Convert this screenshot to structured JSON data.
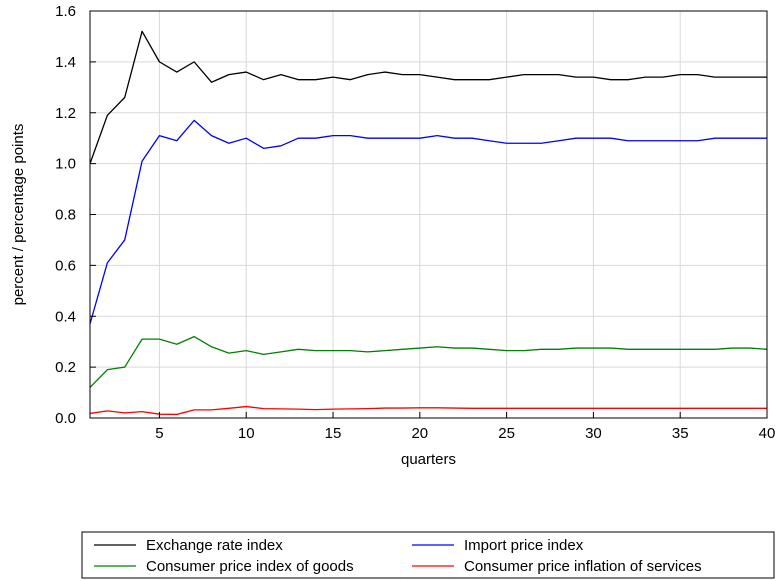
{
  "chart_data": {
    "type": "line",
    "xlabel": "quarters",
    "ylabel": "percent / percentage points",
    "xlim": [
      1,
      40
    ],
    "ylim": [
      0,
      1.6
    ],
    "x_ticks": [
      5,
      10,
      15,
      20,
      25,
      30,
      35,
      40
    ],
    "y_ticks": [
      0.0,
      0.2,
      0.4,
      0.6,
      0.8,
      1.0,
      1.2,
      1.4,
      1.6
    ],
    "x_tick_labels": [
      "5",
      "10",
      "15",
      "20",
      "25",
      "30",
      "35",
      "40"
    ],
    "y_tick_labels": [
      "0.0",
      "0.2",
      "0.4",
      "0.6",
      "0.8",
      "1.0",
      "1.2",
      "1.4",
      "1.6"
    ],
    "grid": true,
    "legend_position": "bottom",
    "x": [
      1,
      2,
      3,
      4,
      5,
      6,
      7,
      8,
      9,
      10,
      11,
      12,
      13,
      14,
      15,
      16,
      17,
      18,
      19,
      20,
      21,
      22,
      23,
      24,
      25,
      26,
      27,
      28,
      29,
      30,
      31,
      32,
      33,
      34,
      35,
      36,
      37,
      38,
      39,
      40
    ],
    "series": [
      {
        "name": "Exchange rate index",
        "color": "#000000",
        "values": [
          1.0,
          1.19,
          1.26,
          1.52,
          1.4,
          1.36,
          1.4,
          1.32,
          1.35,
          1.36,
          1.33,
          1.35,
          1.33,
          1.33,
          1.34,
          1.33,
          1.35,
          1.36,
          1.35,
          1.35,
          1.34,
          1.33,
          1.33,
          1.33,
          1.34,
          1.35,
          1.35,
          1.35,
          1.34,
          1.34,
          1.33,
          1.33,
          1.34,
          1.34,
          1.35,
          1.35,
          1.34,
          1.34,
          1.34,
          1.34
        ]
      },
      {
        "name": "Import price index",
        "color": "#0000ff",
        "values": [
          0.37,
          0.61,
          0.7,
          1.01,
          1.11,
          1.09,
          1.17,
          1.11,
          1.08,
          1.1,
          1.06,
          1.07,
          1.1,
          1.1,
          1.11,
          1.11,
          1.1,
          1.1,
          1.1,
          1.1,
          1.11,
          1.1,
          1.1,
          1.09,
          1.08,
          1.08,
          1.08,
          1.09,
          1.1,
          1.1,
          1.1,
          1.09,
          1.09,
          1.09,
          1.09,
          1.09,
          1.1,
          1.1,
          1.1,
          1.1
        ]
      },
      {
        "name": "Consumer price index of goods",
        "color": "#008000",
        "values": [
          0.12,
          0.19,
          0.2,
          0.31,
          0.31,
          0.29,
          0.32,
          0.28,
          0.255,
          0.265,
          0.25,
          0.26,
          0.27,
          0.265,
          0.265,
          0.265,
          0.26,
          0.265,
          0.27,
          0.275,
          0.28,
          0.275,
          0.275,
          0.27,
          0.265,
          0.265,
          0.27,
          0.27,
          0.275,
          0.275,
          0.275,
          0.27,
          0.27,
          0.27,
          0.27,
          0.27,
          0.27,
          0.275,
          0.275,
          0.27
        ]
      },
      {
        "name": "Consumer price inflation of services",
        "color": "#ff0000",
        "values": [
          0.018,
          0.028,
          0.02,
          0.025,
          0.015,
          0.014,
          0.032,
          0.032,
          0.038,
          0.045,
          0.037,
          0.036,
          0.035,
          0.033,
          0.035,
          0.036,
          0.037,
          0.039,
          0.039,
          0.04,
          0.04,
          0.039,
          0.038,
          0.038,
          0.038,
          0.038,
          0.038,
          0.038,
          0.038,
          0.038,
          0.038,
          0.038,
          0.038,
          0.038,
          0.038,
          0.038,
          0.038,
          0.038,
          0.038,
          0.038
        ]
      }
    ]
  }
}
